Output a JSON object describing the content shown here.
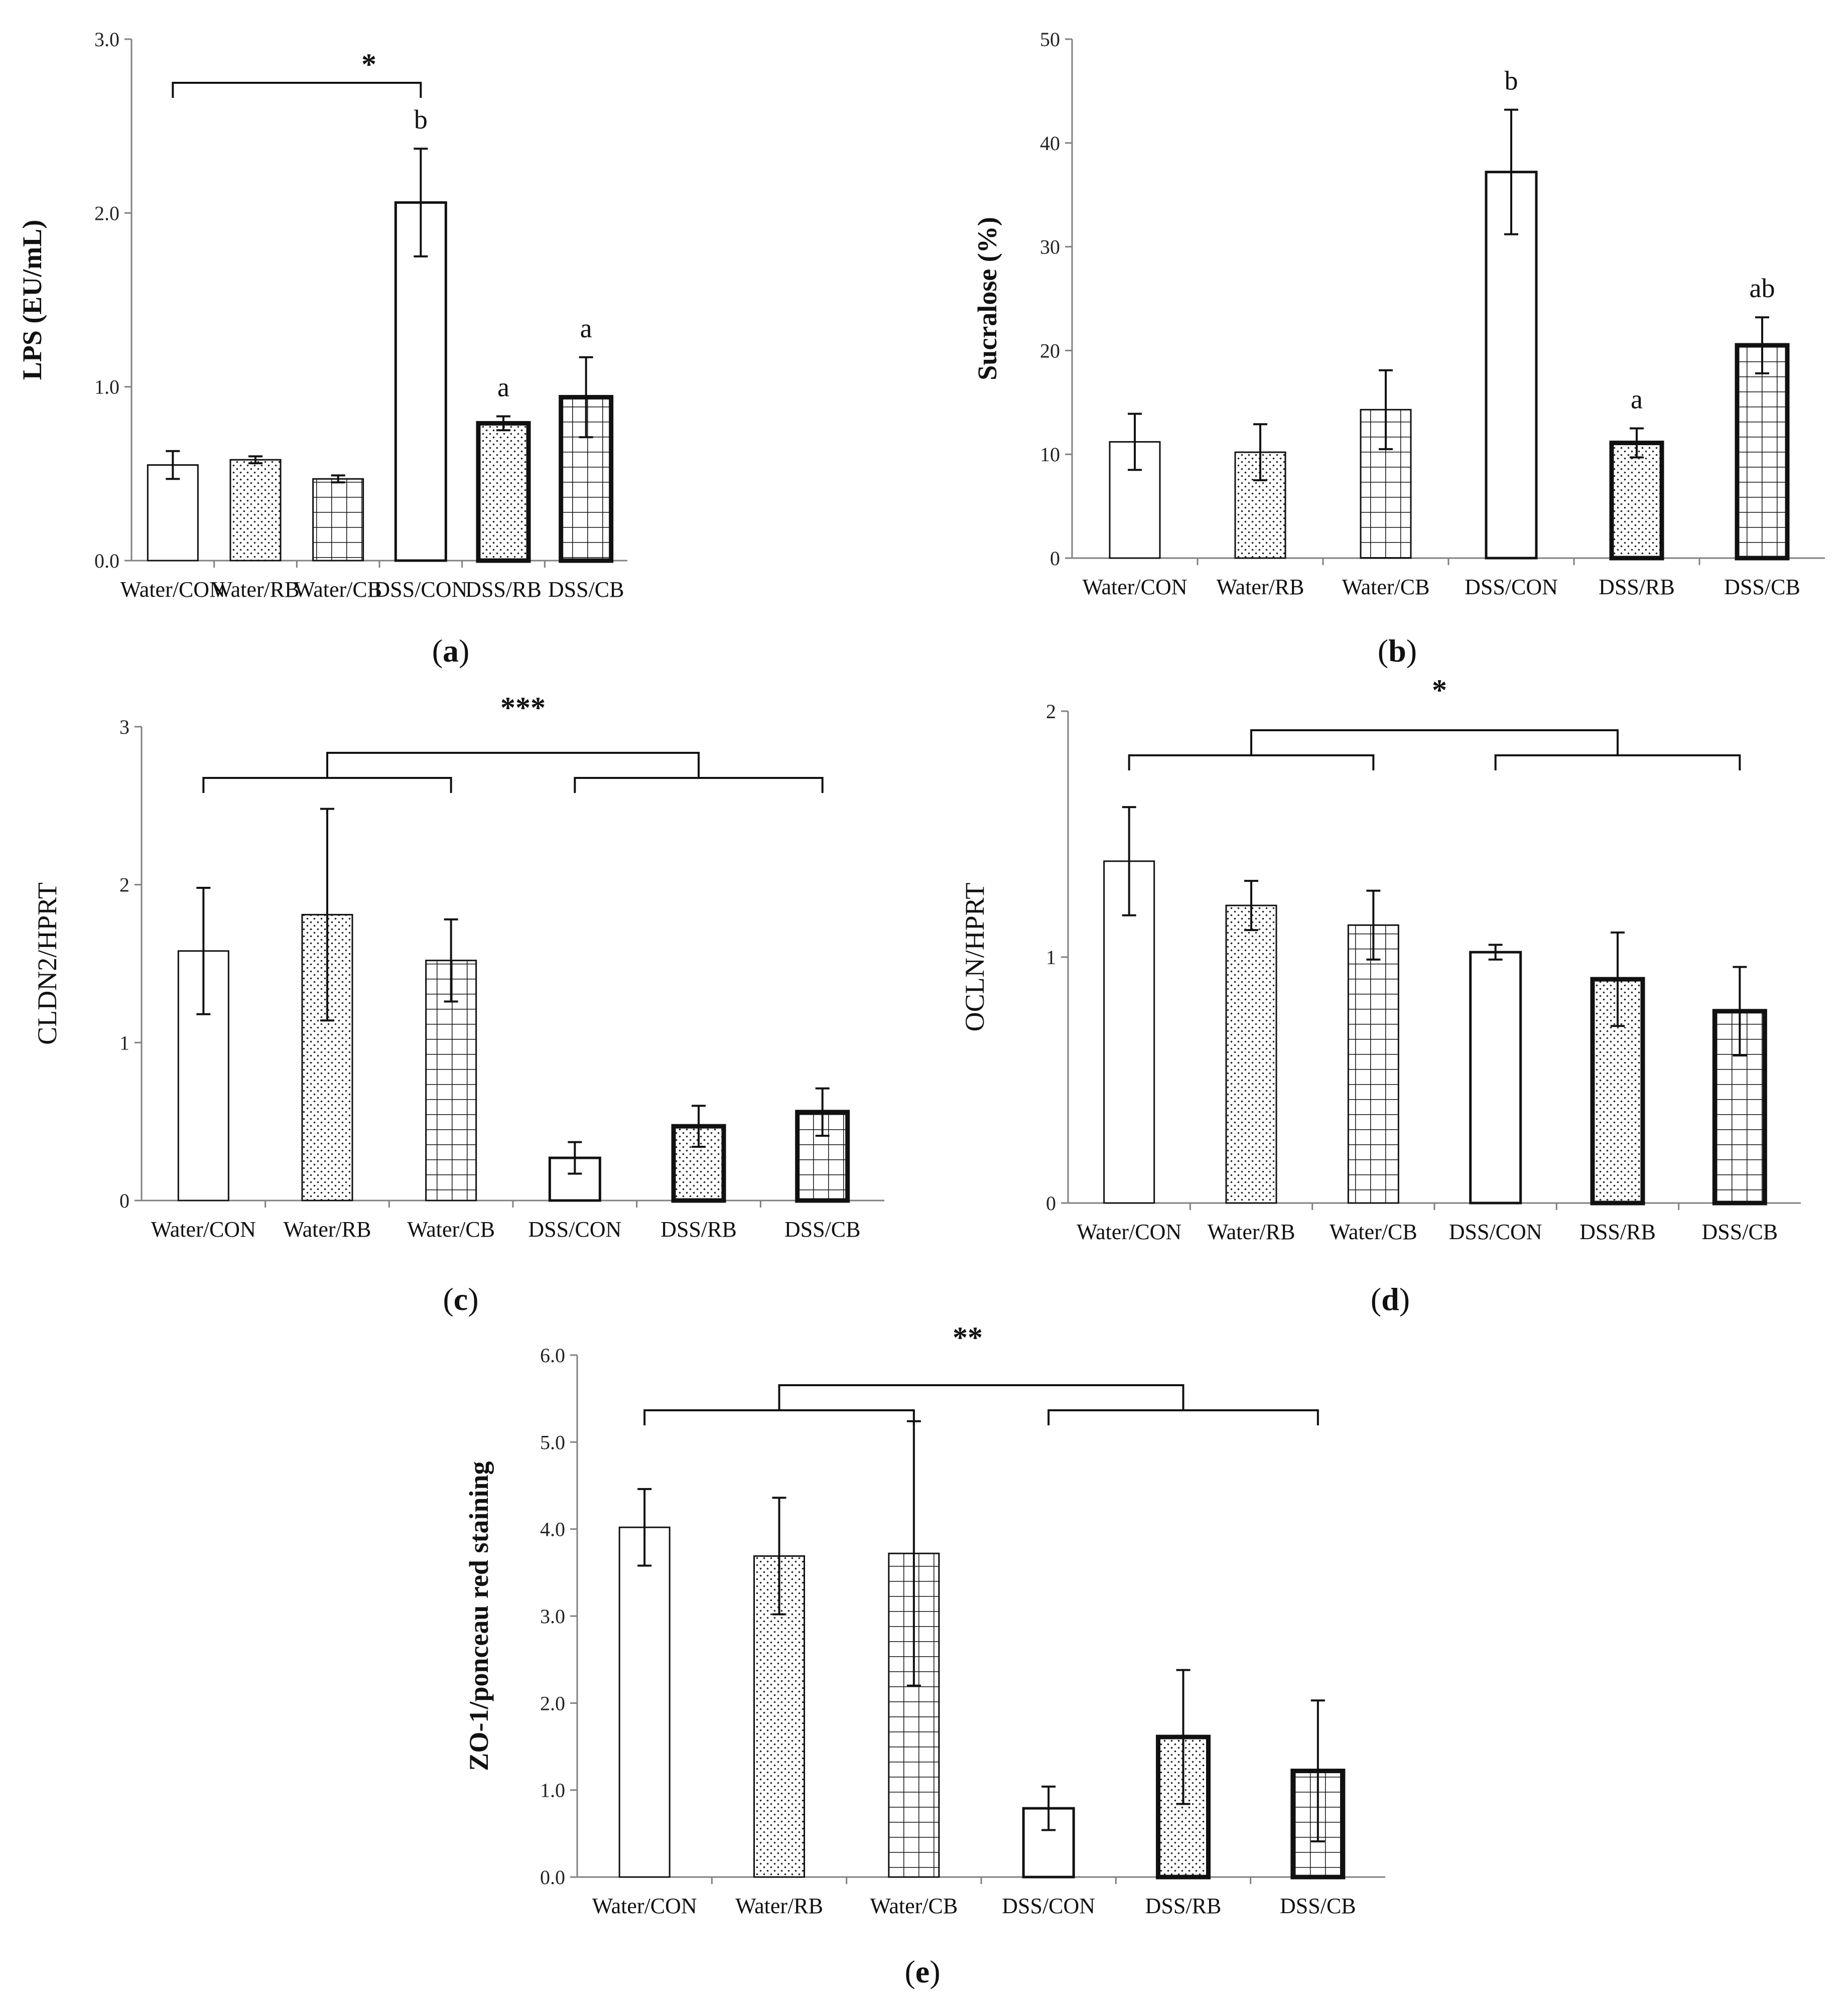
{
  "chart_data": [
    {
      "id": "a",
      "type": "bar",
      "panel_label": "a",
      "ylabel": "LPS (EU/mL)",
      "ylim": [
        0,
        3
      ],
      "yticks": [
        "0.0",
        "1.0",
        "2.0",
        "3.0"
      ],
      "categories": [
        "Water/CON",
        "Water/RB",
        "Water/CB",
        "DSS/CON",
        "DSS/RB",
        "DSS/CB"
      ],
      "values": [
        0.55,
        0.58,
        0.47,
        2.06,
        0.79,
        0.94
      ],
      "errors": [
        0.08,
        0.02,
        0.02,
        0.31,
        0.04,
        0.23
      ],
      "letters": [
        "",
        "",
        "",
        "b",
        "a",
        "a"
      ],
      "significance": {
        "label": "*",
        "groups": "Water/CON vs DSS/CON"
      }
    },
    {
      "id": "b",
      "type": "bar",
      "panel_label": "b",
      "ylabel": "Sucralose  (%)",
      "ylim": [
        0,
        50
      ],
      "yticks": [
        "0",
        "10",
        "20",
        "30",
        "40",
        "50"
      ],
      "categories": [
        "Water/CON",
        "Water/RB",
        "Water/CB",
        "DSS/CON",
        "DSS/RB",
        "DSS/CB"
      ],
      "values": [
        11.2,
        10.2,
        14.3,
        37.2,
        11.1,
        20.5
      ],
      "errors": [
        2.7,
        2.7,
        3.8,
        6.0,
        1.4,
        2.7
      ],
      "letters": [
        "",
        "",
        "",
        "b",
        "a",
        "ab"
      ]
    },
    {
      "id": "c",
      "type": "bar",
      "panel_label": "c",
      "ylabel": "CLDN2/HPRT",
      "ylim": [
        0,
        3
      ],
      "yticks": [
        "0",
        "1",
        "2",
        "3"
      ],
      "categories": [
        "Water/CON",
        "Water/RB",
        "Water/CB",
        "DSS/CON",
        "DSS/RB",
        "DSS/CB"
      ],
      "values": [
        1.58,
        1.81,
        1.52,
        0.27,
        0.47,
        0.56
      ],
      "errors": [
        0.4,
        0.67,
        0.26,
        0.1,
        0.13,
        0.15
      ],
      "significance": {
        "label": "***",
        "groups": "Water groups vs DSS groups"
      }
    },
    {
      "id": "d",
      "type": "bar",
      "panel_label": "d",
      "ylabel": "OCLN/HPRT",
      "ylim": [
        0,
        2
      ],
      "yticks": [
        "0",
        "1",
        "2"
      ],
      "categories": [
        "Water/CON",
        "Water/RB",
        "Water/CB",
        "DSS/CON",
        "DSS/RB",
        "DSS/CB"
      ],
      "values": [
        1.39,
        1.21,
        1.13,
        1.02,
        0.91,
        0.78
      ],
      "errors": [
        0.22,
        0.1,
        0.14,
        0.03,
        0.19,
        0.18
      ],
      "significance": {
        "label": "*",
        "groups": "Water groups vs DSS groups"
      }
    },
    {
      "id": "e",
      "type": "bar",
      "panel_label": "e",
      "ylabel": "ZO-1/ponceau red staining",
      "ylim": [
        0,
        6
      ],
      "yticks": [
        "0.0",
        "1.0",
        "2.0",
        "3.0",
        "4.0",
        "5.0",
        "6.0"
      ],
      "categories": [
        "Water/CON",
        "Water/RB",
        "Water/CB",
        "DSS/CON",
        "DSS/RB",
        "DSS/CB"
      ],
      "values": [
        4.02,
        3.69,
        3.72,
        0.79,
        1.61,
        1.22
      ],
      "errors": [
        0.44,
        0.67,
        1.52,
        0.25,
        0.77,
        0.81
      ],
      "significance": {
        "label": "**",
        "groups": "Water groups vs DSS groups"
      }
    }
  ],
  "colors": {
    "bar_fill": "#ffffff",
    "stroke": "#111111",
    "axis": "#808080"
  }
}
